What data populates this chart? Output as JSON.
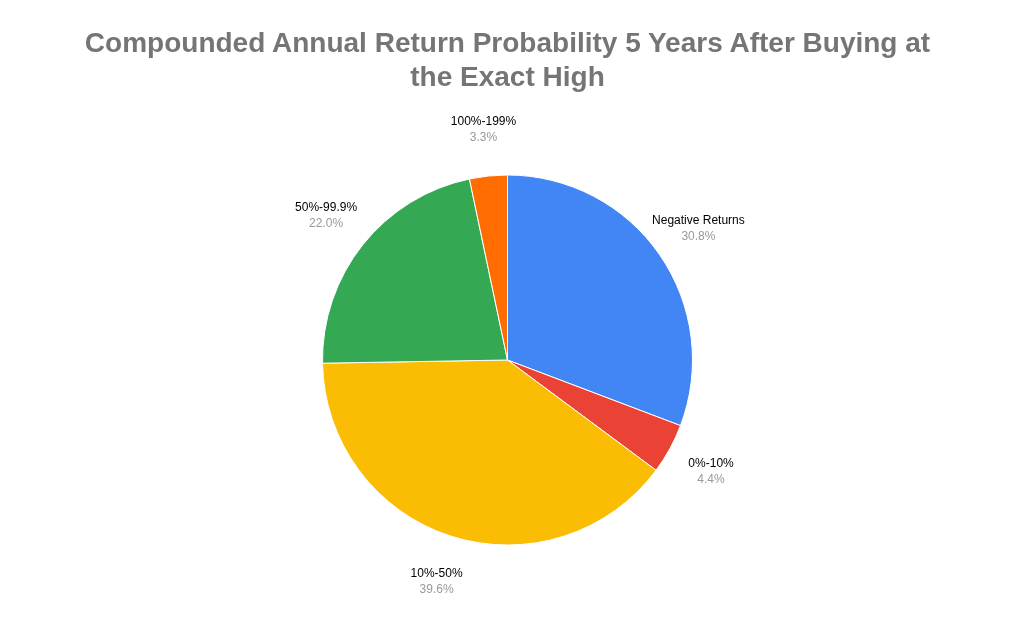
{
  "chart_data": {
    "type": "pie",
    "title": "Compounded Annual Return Probability 5 Years After Buying at the Exact High",
    "categories": [
      "Negative Returns",
      "0%-10%",
      "10%-50%",
      "50%-99.9%",
      "100%-199%"
    ],
    "values": [
      30.8,
      4.4,
      39.6,
      22.0,
      3.3
    ],
    "value_labels": [
      "30.8%",
      "4.4%",
      "39.6%",
      "22.0%",
      "3.3%"
    ],
    "colors": [
      "#4285f4",
      "#ea4335",
      "#fbbc04",
      "#34a853",
      "#ff6d01"
    ],
    "legend": false
  }
}
